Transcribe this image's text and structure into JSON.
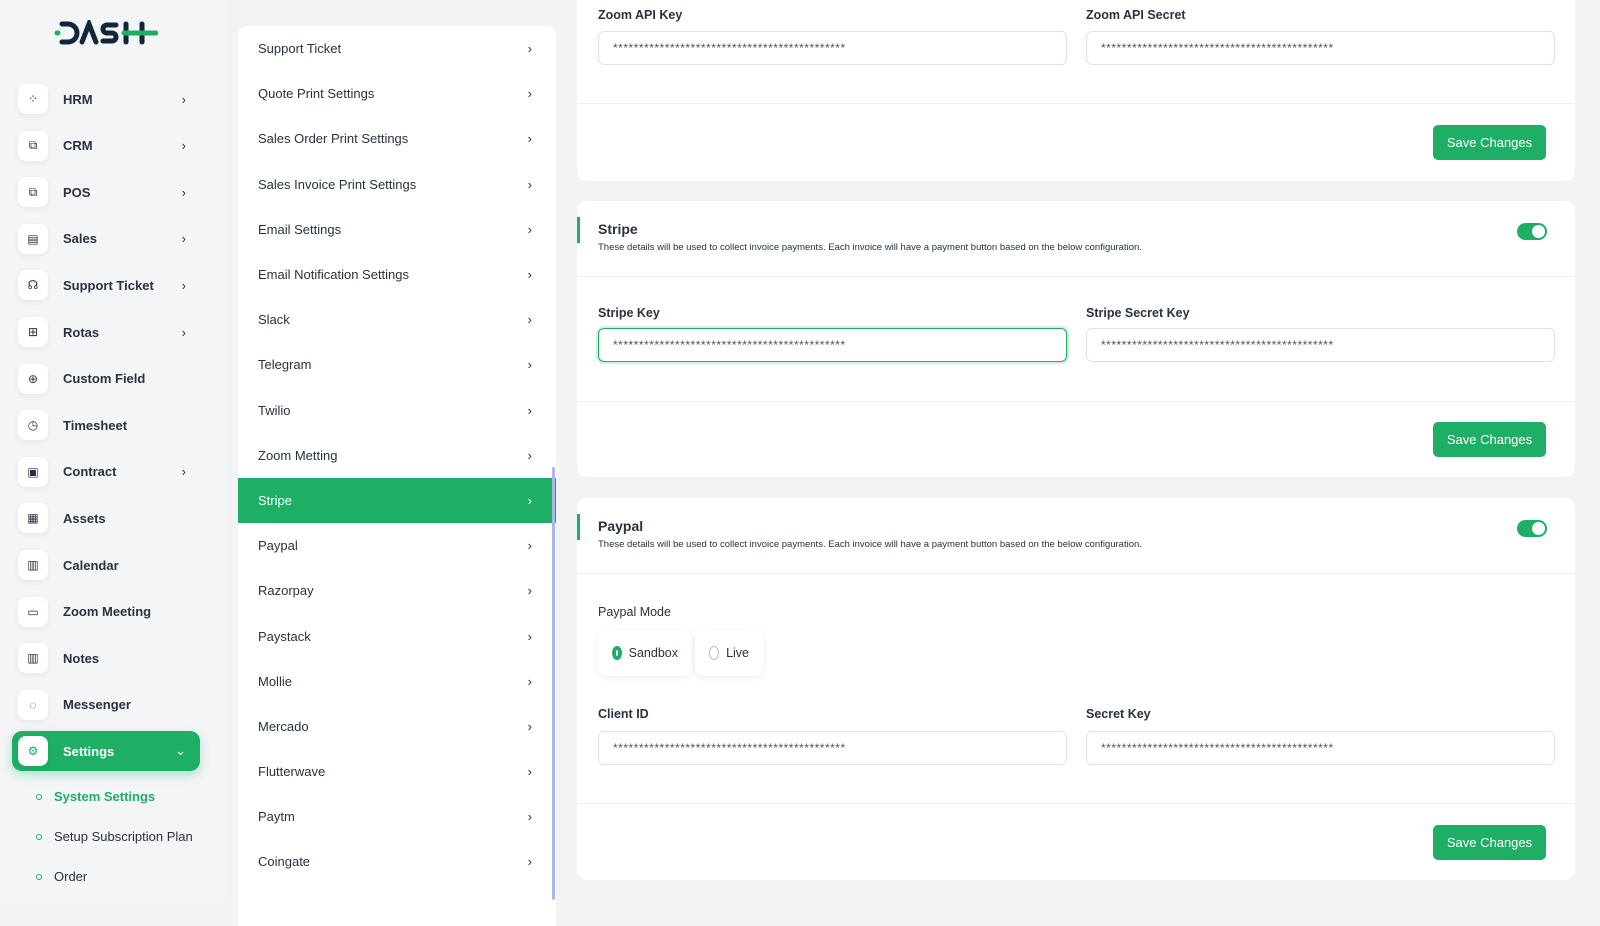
{
  "brand": {
    "logo_text": "DASH",
    "accent": "#1eae65"
  },
  "sidebar": {
    "items": [
      {
        "label": "HRM",
        "icon": "hrm-icon",
        "chevron": true
      },
      {
        "label": "CRM",
        "icon": "crm-icon",
        "chevron": true
      },
      {
        "label": "POS",
        "icon": "pos-icon",
        "chevron": true
      },
      {
        "label": "Sales",
        "icon": "file-icon",
        "chevron": true
      },
      {
        "label": "Support Ticket",
        "icon": "headset-icon",
        "chevron": true
      },
      {
        "label": "Rotas",
        "icon": "grid-icon",
        "chevron": true
      },
      {
        "label": "Custom Field",
        "icon": "plus-circle-icon",
        "chevron": false
      },
      {
        "label": "Timesheet",
        "icon": "clock-icon",
        "chevron": false
      },
      {
        "label": "Contract",
        "icon": "contract-icon",
        "chevron": true
      },
      {
        "label": "Assets",
        "icon": "calculator-icon",
        "chevron": false
      },
      {
        "label": "Calendar",
        "icon": "calendar-icon",
        "chevron": false
      },
      {
        "label": "Zoom Meeting",
        "icon": "video-icon",
        "chevron": false
      },
      {
        "label": "Notes",
        "icon": "notes-icon",
        "chevron": false
      },
      {
        "label": "Messenger",
        "icon": "chat-icon",
        "chevron": false
      },
      {
        "label": "Settings",
        "icon": "gear-icon",
        "chevron": true,
        "active": true
      }
    ],
    "subitems": [
      {
        "label": "System Settings",
        "active": true
      },
      {
        "label": "Setup Subscription Plan"
      },
      {
        "label": "Order"
      }
    ]
  },
  "settings_menu": {
    "items": [
      "Support Ticket",
      "Quote Print Settings",
      "Sales Order Print Settings",
      "Sales Invoice Print Settings",
      "Email Settings",
      "Email Notification Settings",
      "Slack",
      "Telegram",
      "Twilio",
      "Zoom Metting",
      "Stripe",
      "Paypal",
      "Razorpay",
      "Paystack",
      "Mollie",
      "Mercado",
      "Flutterwave",
      "Paytm",
      "Coingate"
    ],
    "active": "Stripe"
  },
  "zoom": {
    "api_key_label": "Zoom API Key",
    "api_key": "*********************************************",
    "api_secret_label": "Zoom API Secret",
    "api_secret": "*********************************************",
    "save": "Save Changes"
  },
  "stripe": {
    "title": "Stripe",
    "desc": "These details will be used to collect invoice payments. Each invoice will have a payment button based on the below configuration.",
    "enabled": true,
    "key_label": "Stripe Key",
    "key": "*********************************************",
    "secret_label": "Stripe Secret Key",
    "secret": "*********************************************",
    "save": "Save Changes"
  },
  "paypal": {
    "title": "Paypal",
    "desc": "These details will be used to collect invoice payments. Each invoice will have a payment button based on the below configuration.",
    "enabled": true,
    "mode_label": "Paypal Mode",
    "modes": [
      "Sandbox",
      "Live"
    ],
    "selected_mode": "Sandbox",
    "client_label": "Client ID",
    "client": "*********************************************",
    "secret_label": "Secret Key",
    "secret": "*********************************************",
    "save": "Save Changes"
  }
}
